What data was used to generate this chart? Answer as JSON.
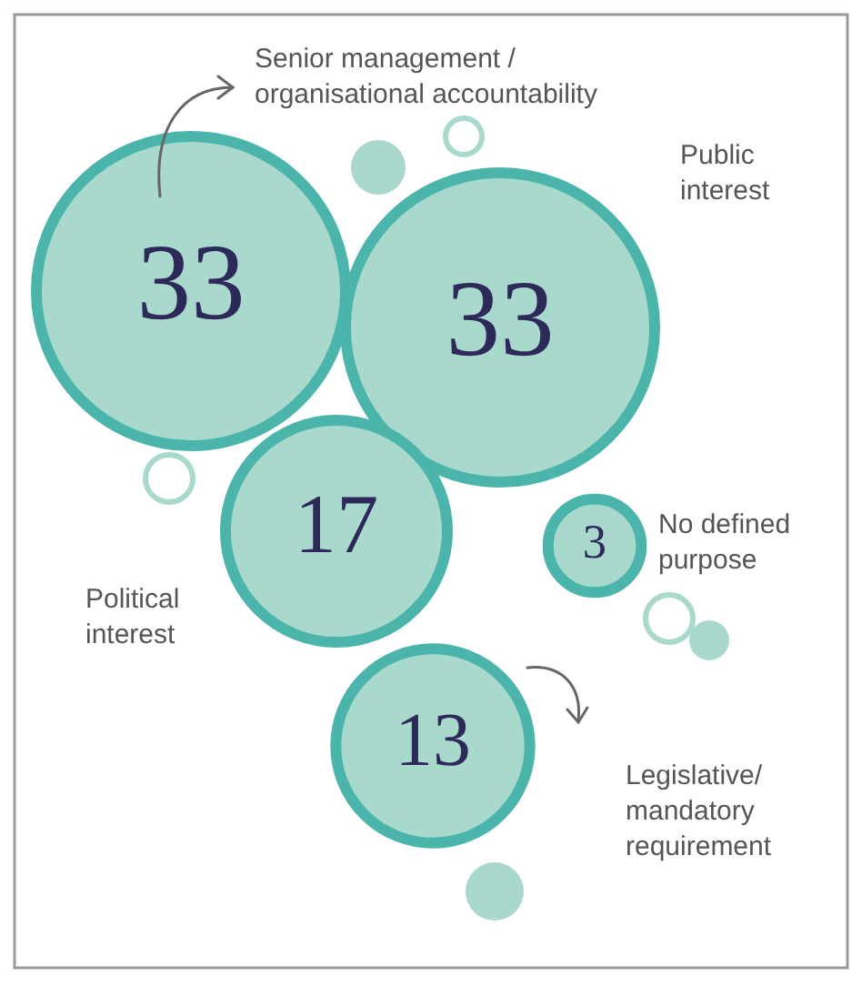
{
  "chart_data": {
    "type": "other",
    "categories": [
      "Senior management /\norganisational accountability",
      "Public\ninterest",
      "Political\ninterest",
      "No defined\npurpose",
      "Legislative/\nmandatory\nrequirement"
    ],
    "values": [
      33,
      33,
      17,
      3,
      13
    ],
    "data_labels": true,
    "colors": [
      "#a9d9cd",
      "#a9d9cd",
      "#a9d9cd",
      "#a9d9cd",
      "#a9d9cd"
    ]
  }
}
